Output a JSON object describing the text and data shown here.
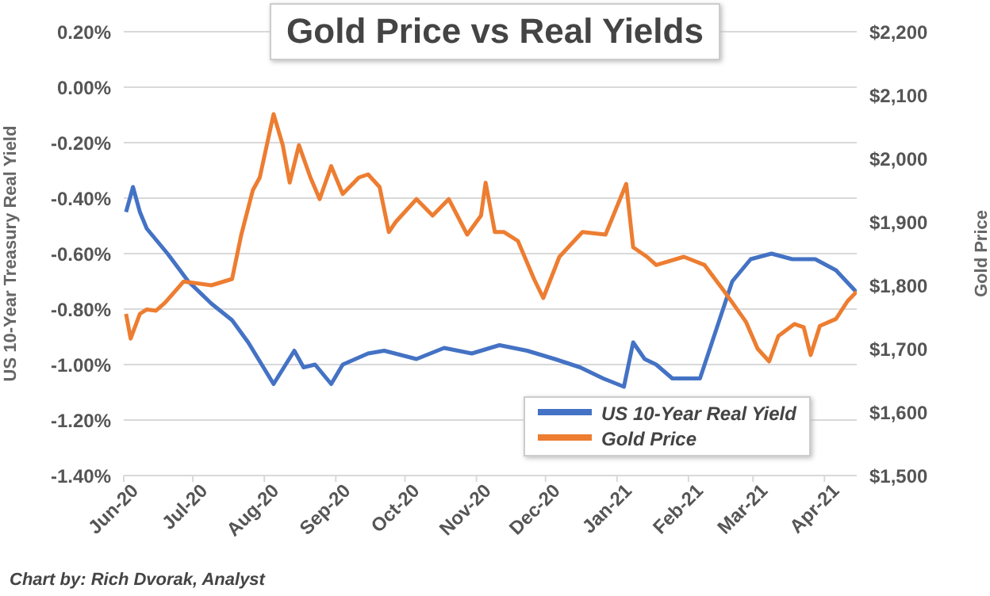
{
  "chart_data": {
    "type": "line",
    "title": "Gold Price vs Real Yields",
    "ylabel": "US 10-Year Treasury Real Yield",
    "y2label": "Gold Price",
    "annotations": [
      "Chart by: Rich Dvorak, Analyst"
    ],
    "xlim": [
      "2020-06-01",
      "2021-04-15"
    ],
    "xticks": [
      {
        "value": "2020-06-01",
        "label": "Jun-20"
      },
      {
        "value": "2020-07-01",
        "label": "Jul-20"
      },
      {
        "value": "2020-08-01",
        "label": "Aug-20"
      },
      {
        "value": "2020-09-01",
        "label": "Sep-20"
      },
      {
        "value": "2020-10-01",
        "label": "Oct-20"
      },
      {
        "value": "2020-11-01",
        "label": "Nov-20"
      },
      {
        "value": "2020-12-01",
        "label": "Dec-20"
      },
      {
        "value": "2021-01-01",
        "label": "Jan-21"
      },
      {
        "value": "2021-02-01",
        "label": "Feb-21"
      },
      {
        "value": "2021-03-01",
        "label": "Mar-21"
      },
      {
        "value": "2021-04-01",
        "label": "Apr-21"
      }
    ],
    "ylim": [
      -1.4,
      0.2
    ],
    "yticks": [
      {
        "value": -1.4,
        "label": "-1.40%"
      },
      {
        "value": -1.2,
        "label": "-1.20%"
      },
      {
        "value": -1.0,
        "label": "-1.00%"
      },
      {
        "value": -0.8,
        "label": "-0.80%"
      },
      {
        "value": -0.6,
        "label": "-0.60%"
      },
      {
        "value": -0.4,
        "label": "-0.40%"
      },
      {
        "value": -0.2,
        "label": "-0.20%"
      },
      {
        "value": 0,
        "label": "0.00%"
      },
      {
        "value": 0.2,
        "label": "0.20%"
      }
    ],
    "y2lim": [
      1500,
      2200
    ],
    "y2ticks": [
      {
        "value": 1500,
        "label": "$1,500"
      },
      {
        "value": 1600,
        "label": "$1,600"
      },
      {
        "value": 1700,
        "label": "$1,700"
      },
      {
        "value": 1800,
        "label": "$1,800"
      },
      {
        "value": 1900,
        "label": "$1,900"
      },
      {
        "value": 2000,
        "label": "$2,000"
      },
      {
        "value": 2100,
        "label": "$2,100"
      },
      {
        "value": 2200,
        "label": "$2,200"
      }
    ],
    "grid": "y",
    "legend": "bottom right",
    "marker": "none",
    "line_style": "solid",
    "series": [
      {
        "name": "US 10-Year Real Yield",
        "color": "#4472c4",
        "x": [
          "2020-06-02",
          "2020-06-05",
          "2020-06-08",
          "2020-06-11",
          "2020-06-20",
          "2020-06-29",
          "2020-07-09",
          "2020-07-18",
          "2020-07-25",
          "2020-08-05",
          "2020-08-14",
          "2020-08-18",
          "2020-08-23",
          "2020-08-30",
          "2020-09-04",
          "2020-09-15",
          "2020-09-22",
          "2020-10-06",
          "2020-10-18",
          "2020-10-30",
          "2020-11-11",
          "2020-11-23",
          "2020-12-05",
          "2020-12-16",
          "2020-12-26",
          "2021-01-04",
          "2021-01-08",
          "2021-01-13",
          "2021-01-18",
          "2021-01-25",
          "2021-02-06",
          "2021-02-16",
          "2021-02-20",
          "2021-02-28",
          "2021-03-09",
          "2021-03-18",
          "2021-03-28",
          "2021-04-06",
          "2021-04-15"
        ],
        "values": [
          -0.45,
          -0.36,
          -0.45,
          -0.51,
          -0.6,
          -0.7,
          -0.78,
          -0.84,
          -0.92,
          -1.07,
          -0.95,
          -1.01,
          -1.0,
          -1.07,
          -1.0,
          -0.96,
          -0.95,
          -0.98,
          -0.94,
          -0.96,
          -0.93,
          -0.95,
          -0.98,
          -1.01,
          -1.05,
          -1.08,
          -0.92,
          -0.98,
          -1.0,
          -1.05,
          -1.05,
          -0.8,
          -0.7,
          -0.62,
          -0.6,
          -0.62,
          -0.62,
          -0.66,
          -0.74
        ]
      },
      {
        "name": "Gold Price",
        "color": "#ed7d31",
        "axis": "y2",
        "x": [
          "2020-06-02",
          "2020-06-04",
          "2020-06-08",
          "2020-06-11",
          "2020-06-15",
          "2020-06-19",
          "2020-06-27",
          "2020-07-09",
          "2020-07-18",
          "2020-07-22",
          "2020-07-27",
          "2020-07-30",
          "2020-08-05",
          "2020-08-09",
          "2020-08-12",
          "2020-08-16",
          "2020-08-21",
          "2020-08-25",
          "2020-08-30",
          "2020-09-04",
          "2020-09-11",
          "2020-09-15",
          "2020-09-20",
          "2020-09-24",
          "2020-09-27",
          "2020-10-06",
          "2020-10-13",
          "2020-10-20",
          "2020-10-28",
          "2020-11-03",
          "2020-11-05",
          "2020-11-09",
          "2020-11-13",
          "2020-11-19",
          "2020-11-26",
          "2020-11-30",
          "2020-12-07",
          "2020-12-17",
          "2020-12-27",
          "2021-01-05",
          "2021-01-08",
          "2021-01-14",
          "2021-01-18",
          "2021-01-30",
          "2021-02-08",
          "2021-02-16",
          "2021-02-20",
          "2021-02-26",
          "2021-03-03",
          "2021-03-08",
          "2021-03-12",
          "2021-03-19",
          "2021-03-23",
          "2021-03-26",
          "2021-03-30",
          "2021-04-06",
          "2021-04-11",
          "2021-04-15"
        ],
        "values": [
          1755,
          1716,
          1755,
          1762,
          1760,
          1773,
          1806,
          1800,
          1810,
          1880,
          1950,
          1970,
          2070,
          2021,
          1962,
          2021,
          1970,
          1936,
          1988,
          1944,
          1970,
          1975,
          1955,
          1884,
          1900,
          1936,
          1910,
          1936,
          1880,
          1910,
          1962,
          1884,
          1884,
          1870,
          1810,
          1780,
          1845,
          1884,
          1880,
          1960,
          1860,
          1845,
          1832,
          1845,
          1832,
          1793,
          1773,
          1742,
          1700,
          1680,
          1720,
          1739,
          1734,
          1690,
          1736,
          1747,
          1775,
          1790
        ]
      }
    ]
  }
}
